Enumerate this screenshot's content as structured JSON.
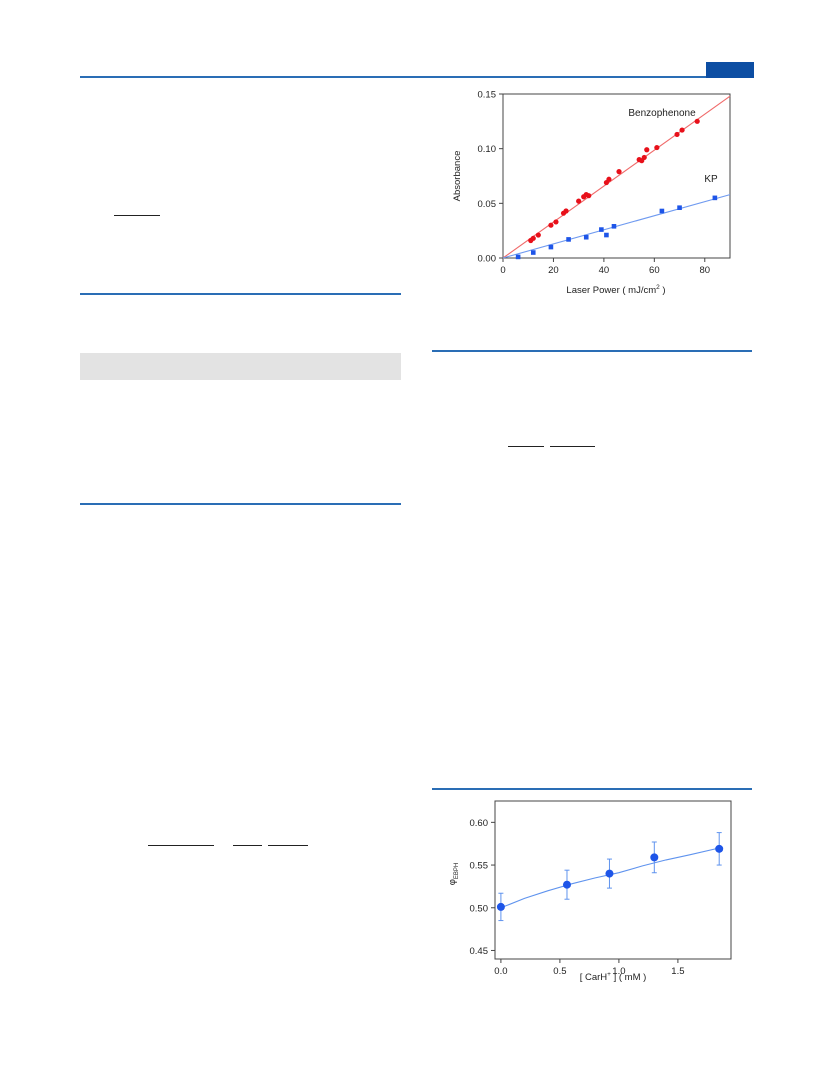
{
  "colors": {
    "rule_blue": "#2a6db5",
    "tab_blue": "#0d4ea3",
    "benzophenone_red": "#e8101a",
    "kp_blue": "#1e55e8",
    "fit_blue": "#5f93ee"
  },
  "chart_data": [
    {
      "type": "scatter",
      "title": "",
      "xlabel": "Laser Power  ( mJ/cm",
      "xlabel_sup": "2",
      "xlabel_end": " )",
      "ylabel": "Absorbance",
      "xlim": [
        0,
        90
      ],
      "ylim": [
        0,
        0.15
      ],
      "xticks": [
        0,
        20,
        40,
        60,
        80
      ],
      "yticks": [
        0.0,
        0.05,
        0.1,
        0.15
      ],
      "xtick_labels": [
        "0",
        "20",
        "40",
        "60",
        "80"
      ],
      "ytick_labels": [
        "0.00",
        "0.05",
        "0.10",
        "0.15"
      ],
      "grid": false,
      "series": [
        {
          "name": "Benzophenone",
          "marker": "circle",
          "color": "#e8101a",
          "x": [
            11,
            12,
            14,
            19,
            21,
            24,
            25,
            30,
            32,
            33,
            34,
            41,
            42,
            46,
            54,
            55,
            56,
            57,
            61,
            69,
            71,
            77
          ],
          "y": [
            0.016,
            0.018,
            0.021,
            0.03,
            0.033,
            0.041,
            0.043,
            0.052,
            0.056,
            0.058,
            0.057,
            0.069,
            0.072,
            0.079,
            0.09,
            0.089,
            0.092,
            0.099,
            0.101,
            0.113,
            0.117,
            0.125
          ],
          "fit": {
            "x": [
              0,
              90
            ],
            "y": [
              0.0,
              0.148
            ]
          }
        },
        {
          "name": "KP",
          "marker": "square",
          "color": "#1e55e8",
          "x": [
            6,
            12,
            19,
            26,
            33,
            39,
            41,
            44,
            63,
            70,
            84
          ],
          "y": [
            0.001,
            0.005,
            0.01,
            0.017,
            0.019,
            0.026,
            0.021,
            0.029,
            0.043,
            0.046,
            0.055
          ],
          "fit": {
            "x": [
              0,
              90
            ],
            "y": [
              0.0,
              0.058
            ]
          }
        }
      ]
    },
    {
      "type": "scatter",
      "title": "",
      "xlabel": "[ CarH",
      "xlabel_sup": "+",
      "xlabel_end": " ]  ( mM )",
      "ylabel": "φ",
      "ylabel_sub": "EBPH",
      "xlim": [
        -0.05,
        1.95
      ],
      "ylim": [
        0.44,
        0.625
      ],
      "xticks": [
        0.0,
        0.5,
        1.0,
        1.5
      ],
      "yticks": [
        0.45,
        0.5,
        0.55,
        0.6
      ],
      "xtick_labels": [
        "0.0",
        "0.5",
        "1.0",
        "1.5"
      ],
      "ytick_labels": [
        "0.45",
        "0.50",
        "0.55",
        "0.60"
      ],
      "grid": false,
      "series": [
        {
          "marker": "circle",
          "color": "#1e55e8",
          "x": [
            0.0,
            0.56,
            0.92,
            1.3,
            1.85
          ],
          "y": [
            0.501,
            0.527,
            0.54,
            0.559,
            0.569
          ],
          "error": [
            0.016,
            0.017,
            0.017,
            0.018,
            0.019
          ],
          "fit": {
            "x": [
              0.0,
              0.2,
              0.4,
              0.6,
              0.8,
              1.0,
              1.2,
              1.4,
              1.6,
              1.85
            ],
            "y": [
              0.5,
              0.511,
              0.52,
              0.528,
              0.535,
              0.541,
              0.549,
              0.556,
              0.562,
              0.57
            ]
          }
        }
      ]
    }
  ]
}
